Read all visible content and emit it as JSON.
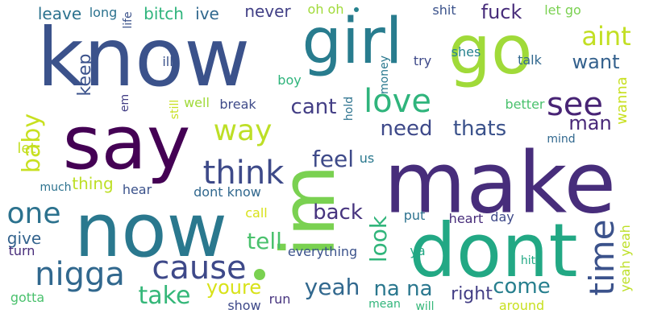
{
  "words": [
    {
      "text": "know",
      "color": "#3b528b",
      "vertical": false
    },
    {
      "text": "make",
      "color": "#472d7b",
      "vertical": false
    },
    {
      "text": "say",
      "color": "#440154",
      "vertical": false
    },
    {
      "text": "im",
      "color": "#7ad151",
      "vertical": true
    },
    {
      "text": "now",
      "color": "#2a788e",
      "vertical": false
    },
    {
      "text": "dont",
      "color": "#22a884",
      "vertical": false
    },
    {
      "text": "go",
      "color": "#a0da39",
      "vertical": false
    },
    {
      "text": "girl",
      "color": "#287c8e",
      "vertical": false
    },
    {
      "text": "cause",
      "color": "#3e4989",
      "vertical": false
    },
    {
      "text": "nigga",
      "color": "#31688e",
      "vertical": false
    },
    {
      "text": "think",
      "color": "#3e4a89",
      "vertical": false
    },
    {
      "text": "love",
      "color": "#2fb47c",
      "vertical": false
    },
    {
      "text": "see",
      "color": "#482475",
      "vertical": false
    },
    {
      "text": "way",
      "color": "#bddf26",
      "vertical": false
    },
    {
      "text": "one",
      "color": "#2c728e",
      "vertical": false
    },
    {
      "text": "time",
      "color": "#3b528b",
      "vertical": true
    },
    {
      "text": "aint",
      "color": "#c2df23",
      "vertical": false
    },
    {
      "text": "yeah",
      "color": "#31688e",
      "vertical": false
    },
    {
      "text": "want",
      "color": "#34618d",
      "vertical": false
    },
    {
      "text": "need",
      "color": "#3e4989",
      "vertical": false
    },
    {
      "text": "thats",
      "color": "#3b528b",
      "vertical": false
    },
    {
      "text": "baby",
      "color": "#c8e020",
      "vertical": true
    },
    {
      "text": "cant",
      "color": "#433e85",
      "vertical": false
    },
    {
      "text": "take",
      "color": "#35b779",
      "vertical": false
    },
    {
      "text": "come",
      "color": "#277f8e",
      "vertical": false
    },
    {
      "text": "feel",
      "color": "#3e4a89",
      "vertical": false
    },
    {
      "text": "man",
      "color": "#482878",
      "vertical": false
    },
    {
      "text": "na na",
      "color": "#2a778e",
      "vertical": false
    },
    {
      "text": "right",
      "color": "#433e85",
      "vertical": false
    },
    {
      "text": "back",
      "color": "#46337e",
      "vertical": false
    },
    {
      "text": "look",
      "color": "#31b57b",
      "vertical": true
    },
    {
      "text": "tell",
      "color": "#4ac16d",
      "vertical": false
    },
    {
      "text": "youre",
      "color": "#d8e219",
      "vertical": false
    },
    {
      "text": "fuck",
      "color": "#472c7a",
      "vertical": false
    },
    {
      "text": "keep",
      "color": "#3b528b",
      "vertical": true
    },
    {
      "text": "never",
      "color": "#424086",
      "vertical": false
    },
    {
      "text": "leave",
      "color": "#2c728e",
      "vertical": false
    },
    {
      "text": "bitch",
      "color": "#2fb47c",
      "vertical": false
    },
    {
      "text": "ive",
      "color": "#31688e",
      "vertical": false
    },
    {
      "text": "give",
      "color": "#33638d",
      "vertical": false
    },
    {
      "text": "let",
      "color": "#c2df23",
      "vertical": false
    },
    {
      "text": "thing",
      "color": "#bddf26",
      "vertical": false
    },
    {
      "text": "wanna",
      "color": "#c8e020",
      "vertical": true
    },
    {
      "text": "put",
      "color": "#2c728e",
      "vertical": false
    },
    {
      "text": "heart",
      "color": "#472c7a",
      "vertical": false
    },
    {
      "text": "ya",
      "color": "#22a884",
      "vertical": false
    },
    {
      "text": "let go",
      "color": "#7ad151",
      "vertical": false
    },
    {
      "text": "oh oh",
      "color": "#a0da39",
      "vertical": false
    },
    {
      "text": "shit",
      "color": "#3b528b",
      "vertical": false
    },
    {
      "text": "talk",
      "color": "#31688e",
      "vertical": false
    },
    {
      "text": "shes",
      "color": "#26828e",
      "vertical": false
    },
    {
      "text": "try",
      "color": "#3e4989",
      "vertical": false
    },
    {
      "text": "break",
      "color": "#3e4a89",
      "vertical": false
    },
    {
      "text": "well",
      "color": "#a0da39",
      "vertical": false
    },
    {
      "text": "ill",
      "color": "#3b528b",
      "vertical": false
    },
    {
      "text": "boy",
      "color": "#2fb47c",
      "vertical": false
    },
    {
      "text": "hold",
      "color": "#2c728e",
      "vertical": true
    },
    {
      "text": "money",
      "color": "#2a788e",
      "vertical": true
    },
    {
      "text": "better",
      "color": "#4ac16d",
      "vertical": false
    },
    {
      "text": "mind",
      "color": "#31688e",
      "vertical": false
    },
    {
      "text": "us",
      "color": "#2a788e",
      "vertical": false
    },
    {
      "text": "much",
      "color": "#2c728e",
      "vertical": false
    },
    {
      "text": "hear",
      "color": "#3b528b",
      "vertical": false
    },
    {
      "text": "dont know",
      "color": "#31688e",
      "vertical": false
    },
    {
      "text": "call",
      "color": "#d8e219",
      "vertical": false
    },
    {
      "text": "turn",
      "color": "#472c7a",
      "vertical": false
    },
    {
      "text": "gotta",
      "color": "#4ac16d",
      "vertical": false
    },
    {
      "text": "show",
      "color": "#3e4989",
      "vertical": false
    },
    {
      "text": "run",
      "color": "#46337e",
      "vertical": false
    },
    {
      "text": "everything",
      "color": "#3b528b",
      "vertical": false
    },
    {
      "text": "mean",
      "color": "#31b57b",
      "vertical": false
    },
    {
      "text": "will",
      "color": "#35b779",
      "vertical": false
    },
    {
      "text": "around",
      "color": "#c8e020",
      "vertical": false
    },
    {
      "text": "day",
      "color": "#3e4989",
      "vertical": false
    },
    {
      "text": "hit",
      "color": "#22a884",
      "vertical": false
    },
    {
      "text": "yeah yeah",
      "color": "#bddf26",
      "vertical": true
    },
    {
      "text": "long",
      "color": "#2c728e",
      "vertical": false
    },
    {
      "text": "life",
      "color": "#3b528b",
      "vertical": true
    },
    {
      "text": "em",
      "color": "#433e85",
      "vertical": true
    },
    {
      "text": "still",
      "color": "#c8e020",
      "vertical": true
    }
  ],
  "dots": [
    {
      "color": "#7ad151"
    },
    {
      "color": "#26828e"
    }
  ]
}
